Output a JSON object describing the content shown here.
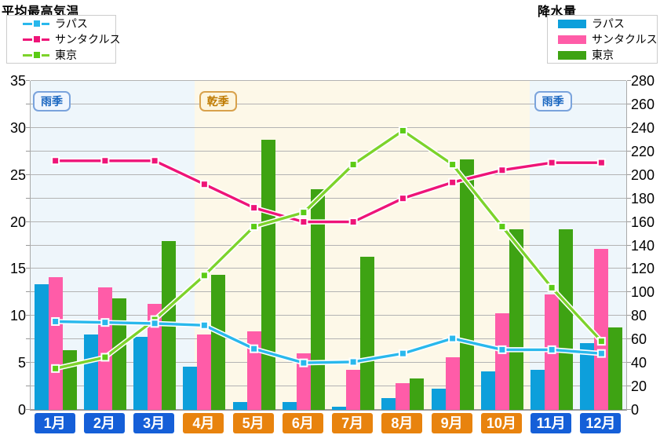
{
  "titles": {
    "left": "平均最高気温",
    "right": "降水量"
  },
  "legends": {
    "temp_lines": [
      {
        "label": "ラパス",
        "color": "#29b8ec",
        "marker": "#29b8ec"
      },
      {
        "label": "サンタクルス",
        "color": "#ee1478",
        "marker": "#ee1478"
      },
      {
        "label": "東京",
        "color": "#7dd32b",
        "marker": "#5bcb16"
      }
    ],
    "precip_bars": [
      {
        "label": "ラパス",
        "color": "#0d9fdb"
      },
      {
        "label": "サンタクルス",
        "color": "#ff5ca8"
      },
      {
        "label": "東京",
        "color": "#3ea313"
      }
    ]
  },
  "chart_data": {
    "type": "combo bar+line (bars = precipitation mm on right axis, lines = temperature °C on left axis)",
    "categories": [
      "1月",
      "2月",
      "3月",
      "4月",
      "5月",
      "6月",
      "7月",
      "8月",
      "9月",
      "10月",
      "11月",
      "12月"
    ],
    "month_seasons": [
      "rainy",
      "rainy",
      "rainy",
      "dry",
      "dry",
      "dry",
      "dry",
      "dry",
      "dry",
      "dry",
      "rainy",
      "rainy"
    ],
    "bands": [
      {
        "label": "雨季",
        "type": "rainy",
        "from_month": 0,
        "to_month": 3.3
      },
      {
        "label": "乾季",
        "type": "dry",
        "from_month": 3.3,
        "to_month": 10.05
      },
      {
        "label": "雨季",
        "type": "rainy",
        "from_month": 10.05,
        "to_month": 12
      }
    ],
    "line_series": [
      {
        "name": "ラパス",
        "color": "#29b8ec",
        "marker": "#29b8ec",
        "values": [
          9.4,
          9.3,
          9.2,
          9.0,
          6.5,
          5.0,
          5.1,
          6.0,
          7.6,
          6.4,
          6.4,
          6.0
        ]
      },
      {
        "name": "サンタクルス",
        "color": "#ee1478",
        "marker": "#ee1478",
        "values": [
          26.5,
          26.5,
          26.5,
          24.0,
          21.5,
          20.0,
          20.0,
          22.5,
          24.2,
          25.5,
          26.3,
          26.3
        ]
      },
      {
        "name": "東京",
        "color": "#7dd32b",
        "marker": "#5bcb16",
        "values": [
          4.4,
          5.6,
          9.6,
          14.3,
          19.5,
          21.0,
          26.1,
          29.7,
          26.1,
          19.5,
          13.0,
          7.3
        ]
      }
    ],
    "bar_series": [
      {
        "name": "ラパス",
        "color": "#0d9fdb",
        "values": [
          107,
          64,
          62,
          37,
          7,
          7,
          3,
          10,
          18,
          33,
          34,
          57
        ]
      },
      {
        "name": "サンタクルス",
        "color": "#ff5ca8",
        "values": [
          113,
          104,
          90,
          64,
          67,
          48,
          34,
          23,
          45,
          82,
          98,
          137
        ]
      },
      {
        "name": "東京",
        "color": "#3ea313",
        "values": [
          51,
          95,
          144,
          115,
          230,
          188,
          130,
          27,
          213,
          154,
          154,
          70
        ]
      }
    ],
    "left_axis": {
      "min": 0,
      "max": 35,
      "tick_step": 5,
      "ticks": [
        35,
        30,
        25,
        20,
        15,
        10,
        5,
        0
      ]
    },
    "right_axis": {
      "min": 0,
      "max": 280,
      "tick_step": 20,
      "ticks": [
        280,
        260,
        240,
        220,
        200,
        180,
        160,
        140,
        120,
        100,
        80,
        60,
        40,
        20,
        0
      ]
    },
    "grid": "horizontal line every 20 right-axis units",
    "legend_position": "top-left (lines) and top-right (bars)"
  },
  "colors": {
    "rainy_bg": "#eef6fb",
    "dry_bg": "#fdf8e8",
    "month_label_rainy": "#155fd8",
    "month_label_dry": "#e8830e",
    "gridline": "#b3b3b3",
    "axis_border": "#999999"
  }
}
